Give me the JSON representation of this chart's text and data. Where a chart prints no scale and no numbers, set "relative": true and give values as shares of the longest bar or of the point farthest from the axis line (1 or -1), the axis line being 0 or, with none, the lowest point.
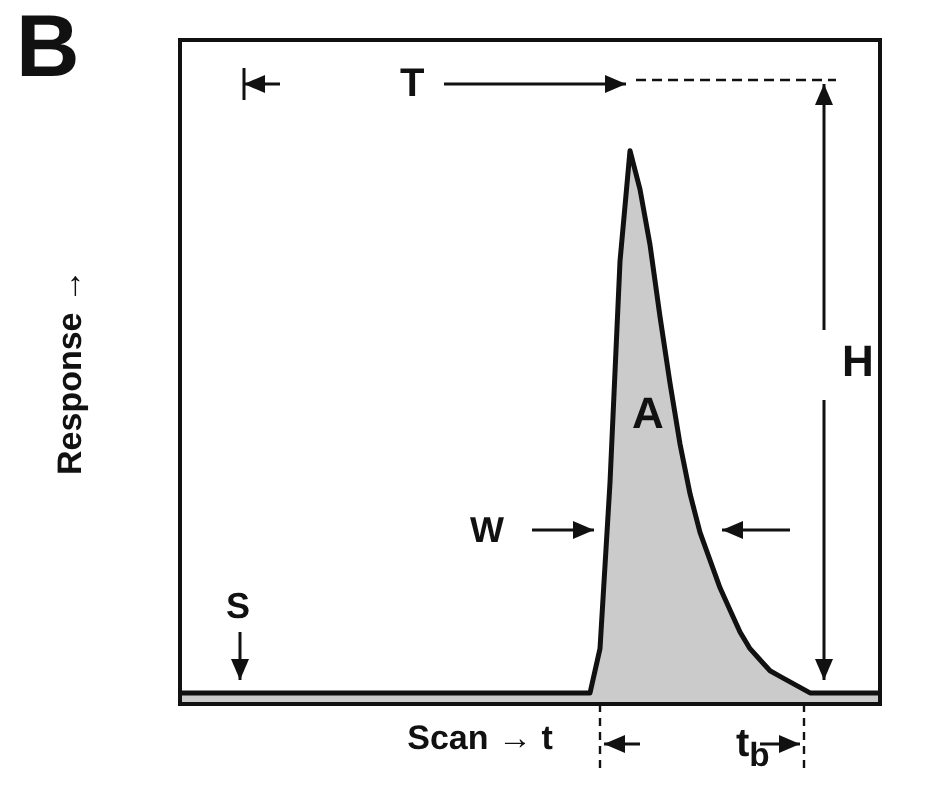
{
  "chart_data": {
    "type": "area",
    "relative": true,
    "xlabel": "Scan → t",
    "ylabel": "Response →",
    "categories": [
      null,
      null,
      null,
      null,
      null,
      null,
      null,
      null,
      null,
      null,
      null,
      null,
      null,
      null,
      null,
      null,
      null,
      null,
      null,
      null,
      null,
      null,
      null,
      null,
      null,
      null,
      null,
      null,
      null,
      null,
      null,
      null,
      null,
      null,
      null,
      null,
      null,
      null,
      null,
      null,
      null,
      null,
      null,
      null,
      null,
      null,
      null,
      null,
      null,
      null,
      null,
      null,
      null,
      null,
      null,
      null,
      null,
      null,
      null,
      null,
      null,
      null,
      null,
      null,
      null,
      null,
      null,
      null,
      null,
      null,
      null
    ],
    "series": [
      {
        "color": "#111111",
        "values": [
          0.02,
          0.02,
          0.02,
          0.02,
          0.02,
          0.02,
          0.02,
          0.02,
          0.02,
          0.02,
          0.02,
          0.02,
          0.02,
          0.02,
          0.02,
          0.02,
          0.02,
          0.02,
          0.02,
          0.02,
          0.02,
          0.02,
          0.02,
          0.02,
          0.02,
          0.02,
          0.02,
          0.02,
          0.02,
          0.02,
          0.02,
          0.02,
          0.02,
          0.02,
          0.02,
          0.02,
          0.02,
          0.02,
          0.02,
          0.02,
          0.02,
          0.02,
          0.1,
          0.4,
          0.8,
          1,
          0.93,
          0.83,
          0.7,
          0.58,
          0.47,
          0.38,
          0.31,
          0.26,
          0.21,
          0.17,
          0.13,
          0.1,
          0.08,
          0.06,
          0.05,
          0.04,
          0.03,
          0.02,
          0.02,
          0.02,
          0.02,
          0.02,
          0.02,
          0.02,
          0.02
        ]
      }
    ],
    "annotations": [
      "B",
      "T",
      "H",
      "A",
      "W",
      "S",
      "t$_{b}$"
    ]
  }
}
